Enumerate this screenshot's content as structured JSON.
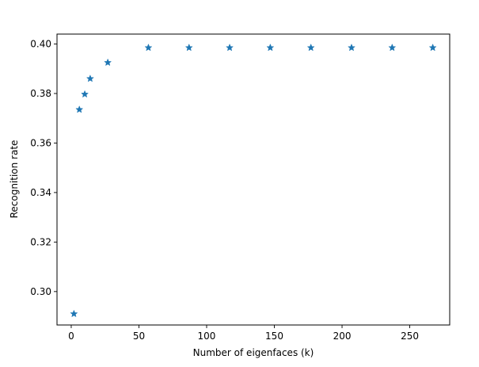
{
  "chart_data": {
    "type": "scatter",
    "title": "",
    "xlabel": "Number of eigenfaces (k)",
    "ylabel": "Recognition rate",
    "xlim": [
      -10.5,
      279.5
    ],
    "ylim": [
      0.2865,
      0.404
    ],
    "xticks": [
      0,
      50,
      100,
      150,
      200,
      250
    ],
    "xtick_labels": [
      "0",
      "50",
      "100",
      "150",
      "200",
      "250"
    ],
    "yticks": [
      0.3,
      0.32,
      0.34,
      0.36,
      0.38,
      0.4
    ],
    "ytick_labels": [
      "0.30",
      "0.32",
      "0.34",
      "0.36",
      "0.38",
      "0.40"
    ],
    "grid": false,
    "marker": "star",
    "marker_color": "#1f77b4",
    "series": [
      {
        "x": [
          2,
          6,
          10,
          14,
          27,
          57,
          87,
          117,
          147,
          177,
          207,
          237,
          267
        ],
        "y": [
          0.291,
          0.3735,
          0.3797,
          0.386,
          0.3925,
          0.3985,
          0.3985,
          0.3985,
          0.3985,
          0.3985,
          0.3985,
          0.3985,
          0.3985
        ]
      }
    ]
  }
}
